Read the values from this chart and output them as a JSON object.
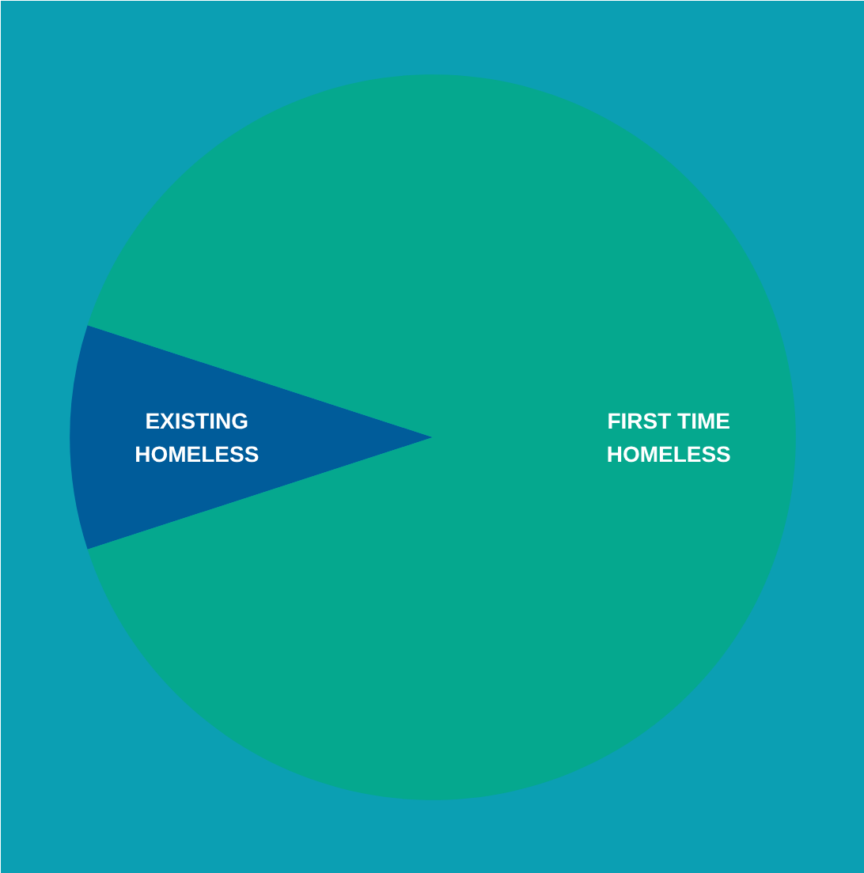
{
  "chart_data": {
    "type": "pie",
    "categories": [
      "EXISTING\nHOMELESS",
      "FIRST TIME\nHOMELESS"
    ],
    "values": [
      10,
      90
    ],
    "colors": [
      "#005c9a",
      "#05a88e"
    ]
  }
}
